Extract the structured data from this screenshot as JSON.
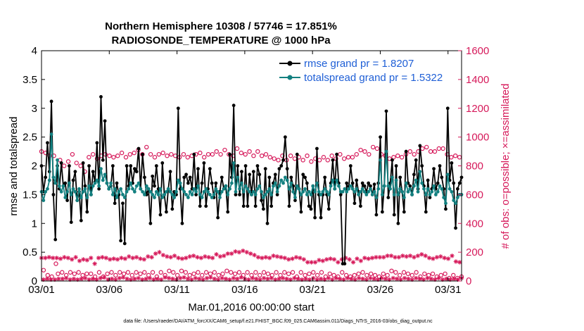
{
  "chart_data": {
    "type": "line",
    "title": "Northern Hemisphere 10308 / 57746 = 17.851%",
    "subtitle": "RADIOSONDE_TEMPERATURE @ 1000 hPa",
    "xlabel": "Mar.01,2016 00:00:00 start",
    "ylabel": "rmse and totalspread",
    "ylabel_right": "# of obs: o=possible; ×=assimilated",
    "footer": "data file: /Users/raeder/DAI/ATM_forcXX/CAM6_setup/f.e21.FHIST_BGC.f09_025.CAM6assim.011/Diags_NTrS_2016-03/obs_diag_output.nc",
    "x_ticks": [
      "03/01",
      "03/06",
      "03/11",
      "03/16",
      "03/21",
      "03/26",
      "03/31"
    ],
    "x_tick_days": [
      1,
      6,
      11,
      16,
      21,
      26,
      31
    ],
    "xlim": [
      1,
      32
    ],
    "ylim": [
      0,
      4
    ],
    "y_ticks": [
      "0",
      "0.5",
      "1",
      "1.5",
      "2",
      "2.5",
      "3",
      "3.5",
      "4"
    ],
    "ylim_right": [
      0,
      1600
    ],
    "y_ticks_right": [
      "0",
      "200",
      "400",
      "600",
      "800",
      "1000",
      "1200",
      "1400",
      "1600"
    ],
    "colors": {
      "rmse": "#000000",
      "spread": "#138080",
      "obs": "#d6195a",
      "legend_text": "#1f5fd6"
    },
    "legend_position": "top-right",
    "series": [
      {
        "name": "rmse grand pr = 1.8207",
        "axis": "left",
        "marker": "filled-circle",
        "values": [
          2.0,
          1.55,
          1.8,
          2.4,
          1.9,
          3.12,
          1.5,
          0.72,
          2.0,
          1.6,
          2.05,
          1.65,
          1.7,
          1.4,
          2.0,
          1.02,
          1.75,
          1.9,
          1.4,
          1.55,
          1.05,
          2.05,
          1.65,
          1.2,
          2.0,
          1.5,
          1.9,
          1.72,
          2.4,
          1.6,
          3.2,
          2.1,
          2.78,
          1.7,
          1.6,
          1.65,
          2.0,
          1.35,
          1.7,
          1.5,
          0.7,
          1.35,
          0.65,
          2.0,
          1.65,
          2.0,
          1.7,
          1.95,
          1.9,
          2.3,
          1.6,
          2.2,
          1.8,
          1.5,
          1.6,
          1.0,
          1.82,
          1.65,
          2.0,
          1.6,
          1.15,
          2.05,
          1.5,
          1.2,
          1.6,
          1.9,
          1.25,
          1.55,
          1.5,
          3.0,
          1.6,
          1.0,
          1.8,
          1.85,
          1.7,
          1.8,
          1.6,
          2.2,
          1.5,
          1.95,
          1.3,
          1.7,
          2.05,
          1.3,
          1.6,
          1.95,
          1.7,
          1.45,
          1.7,
          1.1,
          1.55,
          1.8,
          1.6,
          1.65,
          1.2,
          2.2,
          1.8,
          3.05,
          1.5,
          2.0,
          1.5,
          1.9,
          1.3,
          2.0,
          1.3,
          1.85,
          1.5,
          1.9,
          1.3,
          2.0,
          1.85,
          1.4,
          1.25,
          1.95,
          1.0,
          1.8,
          1.3,
          1.7,
          1.85,
          1.5,
          1.95,
          2.0,
          2.1,
          2.5,
          1.95,
          1.3,
          1.8,
          1.65,
          1.4,
          2.2,
          1.6,
          1.2,
          1.85,
          1.8,
          1.7,
          1.3,
          1.25,
          1.65,
          1.1,
          2.3,
          1.5,
          1.1,
          1.5,
          1.8,
          1.5,
          1.25,
          1.7,
          2.1,
          1.6,
          2.2,
          1.7,
          1.5,
          0.3,
          0.3,
          1.7,
          1.6,
          2.0,
          1.7,
          1.35,
          1.75,
          1.55,
          1.3,
          1.7,
          1.65,
          1.55,
          1.7,
          1.65,
          1.5,
          1.68,
          1.15,
          1.7,
          2.5,
          1.2,
          1.65,
          2.95,
          1.45,
          1.7,
          2.1,
          1.15,
          2.0,
          1.0,
          1.8,
          1.55,
          1.2,
          2.25,
          1.7,
          1.65,
          1.5,
          1.85,
          2.1,
          1.6,
          2.35,
          2.0,
          1.65,
          1.2,
          1.75,
          1.45,
          1.6,
          1.95,
          1.6,
          1.7,
          2.0,
          1.8,
          1.6,
          1.25,
          3.0,
          1.75,
          2.05,
          1.7,
          0.92,
          1.6,
          1.7,
          1.8
        ]
      },
      {
        "name": "totalspread grand pr = 1.5322",
        "axis": "left",
        "marker": "filled-circle",
        "values": [
          1.55,
          1.4,
          1.55,
          1.6,
          1.75,
          2.55,
          1.8,
          1.7,
          2.1,
          1.65,
          1.55,
          1.65,
          1.45,
          1.55,
          1.7,
          1.5,
          1.6,
          1.55,
          1.4,
          1.6,
          1.45,
          1.55,
          1.6,
          1.45,
          1.65,
          1.5,
          1.65,
          1.7,
          1.75,
          1.65,
          1.95,
          1.75,
          1.85,
          1.7,
          1.6,
          1.7,
          1.5,
          1.6,
          1.45,
          1.55,
          1.6,
          1.5,
          1.45,
          1.55,
          1.6,
          1.7,
          1.6,
          1.55,
          1.65,
          1.7,
          1.6,
          1.55,
          1.5,
          1.65,
          1.6,
          1.55,
          1.5,
          1.45,
          1.55,
          1.5,
          1.6,
          1.45,
          1.5,
          1.55,
          1.6,
          1.55,
          1.5,
          1.45,
          1.55,
          1.75,
          1.7,
          1.6,
          1.55,
          1.5,
          1.45,
          1.55,
          1.5,
          1.6,
          1.55,
          1.65,
          1.5,
          1.45,
          1.55,
          1.6,
          1.55,
          1.5,
          1.45,
          1.5,
          1.6,
          1.55,
          1.45,
          1.55,
          1.6,
          1.65,
          1.5,
          1.6,
          1.7,
          2.05,
          1.55,
          1.8,
          1.6,
          1.7,
          1.55,
          1.65,
          1.6,
          1.55,
          1.5,
          1.55,
          1.5,
          1.6,
          1.65,
          1.55,
          1.45,
          1.5,
          1.55,
          1.6,
          1.5,
          1.65,
          1.7,
          1.55,
          1.65,
          1.75,
          1.7,
          1.8,
          1.75,
          1.6,
          1.7,
          1.55,
          1.45,
          1.65,
          1.6,
          1.5,
          1.55,
          1.6,
          1.5,
          1.55,
          1.5,
          1.65,
          1.55,
          1.7,
          1.55,
          1.5,
          1.55,
          1.6,
          1.55,
          1.5,
          1.65,
          1.75,
          1.6,
          1.75,
          1.65,
          1.55,
          1.55,
          1.6,
          1.55,
          1.6,
          1.65,
          1.6,
          1.55,
          1.6,
          1.5,
          1.55,
          1.6,
          1.55,
          1.5,
          1.55,
          1.6,
          1.5,
          1.55,
          1.45,
          1.6,
          2.1,
          1.5,
          1.65,
          2.25,
          1.65,
          1.6,
          1.8,
          1.5,
          1.75,
          1.5,
          1.6,
          1.55,
          1.45,
          1.7,
          1.55,
          1.6,
          1.5,
          1.65,
          1.75,
          1.55,
          1.9,
          1.7,
          1.6,
          1.5,
          1.6,
          1.5,
          1.55,
          1.65,
          1.5,
          1.55,
          1.65,
          1.6,
          1.45,
          1.35,
          1.85,
          1.6,
          1.55,
          1.4,
          1.35,
          1.45,
          1.5,
          1.5
        ]
      },
      {
        "name": "possible",
        "axis": "right",
        "marker": "open-circle",
        "values": [
          900,
          75,
          890,
          40,
          870,
          30,
          870,
          120,
          50,
          840,
          60,
          800,
          40,
          830,
          60,
          880,
          50,
          820,
          60,
          800,
          40,
          760,
          50,
          860,
          50,
          880,
          30,
          850,
          60,
          870,
          30,
          880,
          50,
          870,
          60,
          860,
          40,
          870,
          60,
          890,
          50,
          860,
          60,
          880,
          40,
          890,
          60,
          910,
          50,
          880,
          60,
          930,
          40,
          880,
          60,
          860,
          30,
          880,
          60,
          890,
          40,
          870,
          70,
          880,
          60,
          870,
          40,
          860,
          70,
          880,
          60,
          860,
          40,
          870,
          50,
          880,
          60,
          890,
          40,
          860,
          60,
          880,
          50,
          880,
          60,
          900,
          40,
          880,
          50,
          910,
          70,
          880,
          60,
          870,
          50,
          920,
          60,
          890,
          40,
          880,
          60,
          900,
          40,
          870,
          60,
          900,
          40,
          870,
          60,
          880,
          50,
          860,
          40,
          850,
          60,
          840,
          40,
          870,
          60,
          840,
          50,
          870,
          60,
          850,
          30,
          860,
          60,
          840,
          40,
          870,
          50,
          830,
          60,
          850,
          40,
          840,
          60,
          860,
          30,
          840,
          50,
          870,
          40,
          850,
          30,
          880,
          60,
          850,
          40,
          860,
          30,
          860,
          40,
          880,
          50,
          910,
          60,
          900,
          40,
          880,
          50,
          930,
          40,
          920,
          30,
          880,
          50,
          870,
          40,
          850,
          70,
          860,
          60,
          870,
          40,
          860,
          60,
          880,
          50,
          900,
          40,
          880,
          60,
          900,
          30,
          920,
          50,
          930,
          40,
          900,
          50,
          900,
          30,
          920,
          40,
          920,
          50,
          880,
          20,
          860,
          40,
          870,
          20,
          860,
          30
        ]
      },
      {
        "name": "assimilated",
        "axis": "right",
        "marker": "asterisk",
        "values": [
          160,
          10,
          160,
          15,
          165,
          10,
          160,
          10,
          160,
          15,
          155,
          15,
          165,
          20,
          160,
          10,
          150,
          15,
          165,
          10,
          140,
          15,
          150,
          20,
          145,
          10,
          160,
          15,
          120,
          10,
          160,
          20,
          165,
          25,
          160,
          10,
          150,
          15,
          155,
          10,
          150,
          20,
          160,
          25,
          155,
          15,
          170,
          10,
          160,
          15,
          165,
          20,
          155,
          10,
          150,
          15,
          170,
          20,
          165,
          10,
          190,
          15,
          200,
          10,
          180,
          25,
          170,
          20,
          165,
          15,
          175,
          10,
          160,
          20,
          155,
          25,
          160,
          15,
          170,
          10,
          175,
          20,
          165,
          15,
          160,
          10,
          170,
          20,
          165,
          25,
          160,
          15,
          185,
          10,
          170,
          20,
          175,
          15,
          190,
          10,
          190,
          20,
          205,
          15,
          200,
          25,
          210,
          15,
          200,
          10,
          190,
          20,
          180,
          15,
          165,
          10,
          160,
          20,
          165,
          15,
          160,
          20,
          175,
          10,
          170,
          15,
          165,
          20,
          160,
          15,
          150,
          10,
          155,
          20,
          165,
          15,
          160,
          10,
          150,
          15,
          130,
          10,
          130,
          20,
          130,
          10,
          145,
          15,
          140,
          10,
          150,
          20,
          155,
          10,
          150,
          20,
          130,
          15,
          150,
          10,
          160,
          20,
          150,
          15,
          130,
          10,
          155,
          20,
          140,
          15,
          160,
          10,
          155,
          20,
          160,
          15,
          165,
          10,
          165,
          20,
          165,
          15,
          175,
          10,
          175,
          20,
          165,
          15,
          165,
          10,
          175,
          20,
          170,
          15,
          175,
          10,
          165,
          20,
          175,
          15,
          185,
          10,
          175,
          20,
          160,
          15,
          155,
          10,
          165,
          20,
          170,
          10,
          160,
          15,
          155,
          10,
          175,
          15,
          135,
          10,
          130,
          20
        ]
      }
    ]
  }
}
